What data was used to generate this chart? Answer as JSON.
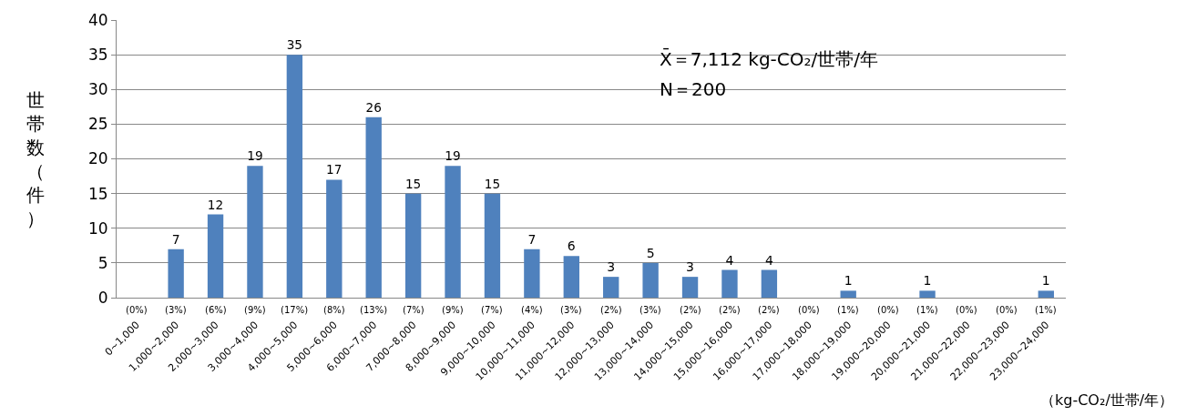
{
  "chart_data": {
    "type": "bar",
    "ylabel": "世帯数（件）",
    "xlabel": "（kg-CO₂/世帯/年）",
    "categories": [
      "0~1,000",
      "1,000~2,000",
      "2,000~3,000",
      "3,000~4,000",
      "4,000~5,000",
      "5,000~6,000",
      "6,000~7,000",
      "7,000~8,000",
      "8,000~9,000",
      "9,000~10,000",
      "10,000~11,000",
      "11,000~12,000",
      "12,000~13,000",
      "13,000~14,000",
      "14,000~15,000",
      "15,000~16,000",
      "16,000~17,000",
      "17,000~18,000",
      "18,000~19,000",
      "19,000~20,000",
      "20,000~21,000",
      "21,000~22,000",
      "22,000~23,000",
      "23,000~24,000"
    ],
    "values": [
      0,
      7,
      12,
      19,
      35,
      17,
      26,
      15,
      19,
      15,
      7,
      6,
      3,
      5,
      3,
      4,
      4,
      0,
      1,
      0,
      1,
      0,
      0,
      1
    ],
    "value_labels": [
      null,
      "7",
      "12",
      "19",
      "35",
      "17",
      "26",
      "15",
      "19",
      "15",
      "7",
      "6",
      "3",
      "5",
      "3",
      "4",
      "4",
      null,
      "1",
      null,
      "1",
      null,
      null,
      "1"
    ],
    "color": "#4f81bd",
    "ylim": [
      0,
      40
    ],
    "yticks": [
      0,
      5,
      10,
      15,
      20,
      25,
      30,
      35,
      40
    ],
    "grid": "y",
    "legend": false,
    "annotations": [
      "X̄＝7,112 kg-CO₂/世帯/年",
      "N＝200",
      "(0%)",
      "(3%)",
      "(6%)",
      "(9%)",
      "(17%)",
      "(8%)",
      "(13%)",
      "(7%)",
      "(9%)",
      "(7%)",
      "(4%)",
      "(3%)",
      "(2%)",
      "(3%)",
      "(2%)",
      "(2%)",
      "(2%)",
      "(0%)",
      "(1%)",
      "(0%)",
      "(1%)",
      "(0%)",
      "(0%)",
      "(1%)"
    ]
  }
}
